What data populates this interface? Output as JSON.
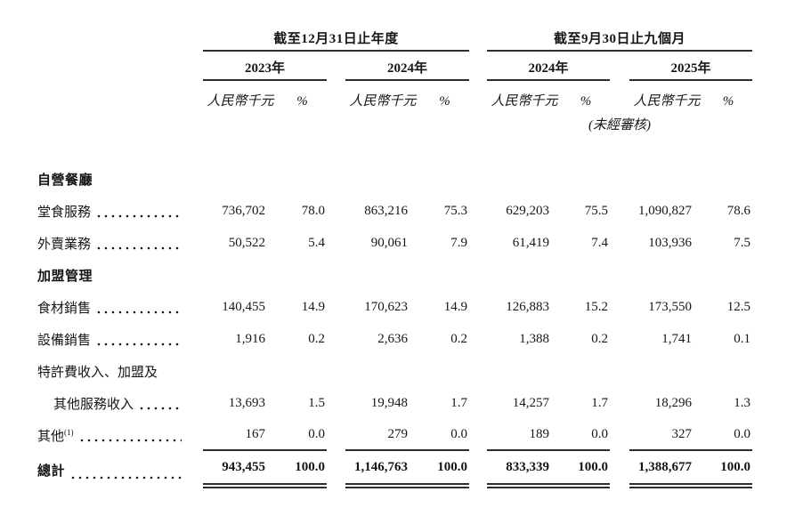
{
  "table": {
    "period_groups": [
      {
        "label": "截至12月31日止年度",
        "years": [
          "2023年",
          "2024年"
        ]
      },
      {
        "label": "截至9月30日止九個月",
        "years": [
          "2024年",
          "2025年"
        ]
      }
    ],
    "unit_label": "人民幣千元",
    "percent_label": "%",
    "unaudited_note": "(未經審核)",
    "rows": [
      {
        "style": "section",
        "label": "自營餐廳"
      },
      {
        "style": "data",
        "label": "堂食服務",
        "leader": true,
        "values": [
          "736,702",
          "78.0",
          "863,216",
          "75.3",
          "629,203",
          "75.5",
          "1,090,827",
          "78.6"
        ]
      },
      {
        "style": "data",
        "label": "外賣業務",
        "leader": true,
        "values": [
          "50,522",
          "5.4",
          "90,061",
          "7.9",
          "61,419",
          "7.4",
          "103,936",
          "7.5"
        ]
      },
      {
        "style": "section",
        "label": "加盟管理"
      },
      {
        "style": "data",
        "label": "食材銷售",
        "leader": true,
        "values": [
          "140,455",
          "14.9",
          "170,623",
          "14.9",
          "126,883",
          "15.2",
          "173,550",
          "12.5"
        ]
      },
      {
        "style": "data",
        "label": "設備銷售",
        "leader": true,
        "values": [
          "1,916",
          "0.2",
          "2,636",
          "0.2",
          "1,388",
          "0.2",
          "1,741",
          "0.1"
        ]
      },
      {
        "style": "plain",
        "label": "特許費收入、加盟及"
      },
      {
        "style": "data",
        "label": "其他服務收入",
        "leader": true,
        "indent": true,
        "values": [
          "13,693",
          "1.5",
          "19,948",
          "1.7",
          "14,257",
          "1.7",
          "18,296",
          "1.3"
        ]
      },
      {
        "style": "data",
        "label": "其他",
        "sup": "(1)",
        "leader": true,
        "rule_below": true,
        "values": [
          "167",
          "0.0",
          "279",
          "0.0",
          "189",
          "0.0",
          "327",
          "0.0"
        ]
      },
      {
        "style": "total",
        "label": "總計",
        "leader": true,
        "values": [
          "943,455",
          "100.0",
          "1,146,763",
          "100.0",
          "833,339",
          "100.0",
          "1,388,677",
          "100.0"
        ]
      }
    ]
  }
}
